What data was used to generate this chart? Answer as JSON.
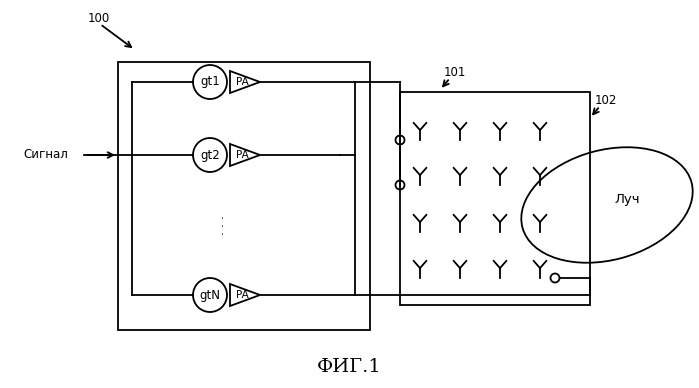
{
  "title": "ФИГ.1",
  "label_100": "100",
  "label_101": "101",
  "label_102": "102",
  "label_signal": "Сигнал",
  "label_beam": "Луч",
  "label_gt1": "gt1",
  "label_gt2": "gt2",
  "label_gtN": "gtN",
  "bg_color": "#ffffff",
  "line_color": "#000000",
  "fontsize_small": 8.5,
  "fontsize_title": 14
}
